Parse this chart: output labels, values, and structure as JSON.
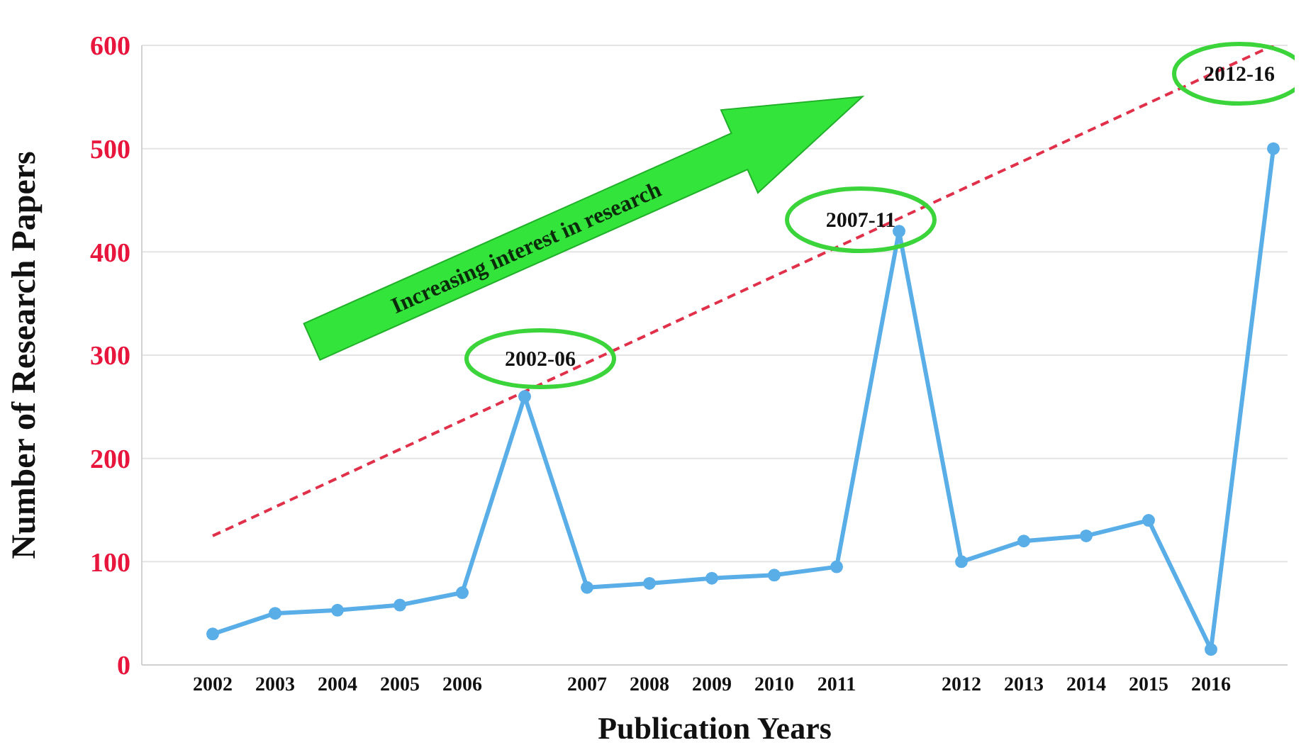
{
  "chart_data": {
    "type": "line",
    "xlabel": "Publication Years",
    "ylabel": "Number of Research Papers",
    "categories": [
      "2002",
      "2003",
      "2004",
      "2005",
      "2006",
      null,
      "2007",
      "2008",
      "2009",
      "2010",
      "2011",
      null,
      "2012",
      "2013",
      "2014",
      "2015",
      "2016",
      null
    ],
    "series": [
      {
        "color": "#5aaee8",
        "marker": "circle",
        "values": [
          30,
          50,
          53,
          58,
          70,
          260,
          75,
          79,
          84,
          87,
          95,
          420,
          100,
          120,
          125,
          140,
          15,
          500
        ]
      },
      {
        "type": "line",
        "color": "#e0304a",
        "line_style": "dashed",
        "marker": "none",
        "values": [
          125,
          null,
          null,
          null,
          null,
          null,
          null,
          null,
          null,
          null,
          null,
          null,
          null,
          null,
          null,
          null,
          null,
          600
        ]
      }
    ],
    "ylim": [
      0,
      600
    ],
    "yticks": [
      0,
      100,
      200,
      300,
      400,
      500,
      600
    ],
    "grid": "y",
    "legend": false,
    "annotations": [
      "Increasing interest in research",
      "2002-06",
      "2007-11",
      "2012-16"
    ]
  }
}
